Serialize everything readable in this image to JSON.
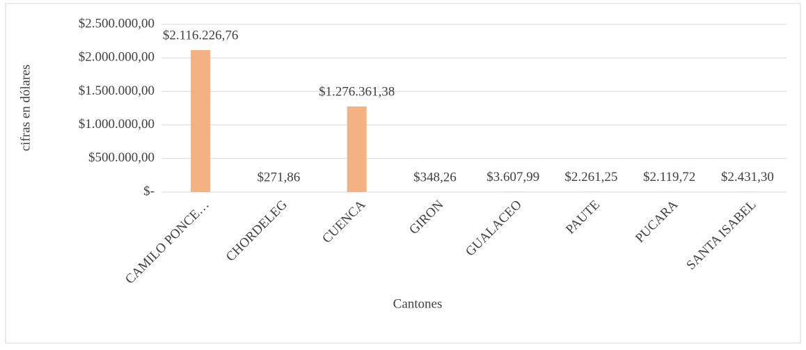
{
  "chart_data": {
    "type": "bar",
    "x_label": "Cantones",
    "y_label": "cifras en dólares",
    "categories": [
      "CAMILO PONCE…",
      "CHORDELEG",
      "CUENCA",
      "GIRON",
      "GUALACEO",
      "PAUTE",
      "PUCARA",
      "SANTA ISABEL"
    ],
    "values": [
      2116226.76,
      271.86,
      1276361.38,
      348.26,
      3607.99,
      2261.25,
      2119.72,
      2431.3
    ],
    "value_labels": [
      "$2.116.226,76",
      "$271,86",
      "$1.276.361,38",
      "$348,26",
      "$3.607,99",
      "$2.261,25",
      "$2.119,72",
      "$2.431,30"
    ],
    "color": "#f4b183",
    "ylim": [
      0,
      2500000
    ],
    "yticks": [
      {
        "value": 0,
        "label": "$-"
      },
      {
        "value": 500000,
        "label": "$500.000,00"
      },
      {
        "value": 1000000,
        "label": "$1.000.000,00"
      },
      {
        "value": 1500000,
        "label": "$1.500.000,00"
      },
      {
        "value": 2000000,
        "label": "$2.000.000,00"
      },
      {
        "value": 2500000,
        "label": "$2.500.000,00"
      }
    ],
    "grid": true
  }
}
